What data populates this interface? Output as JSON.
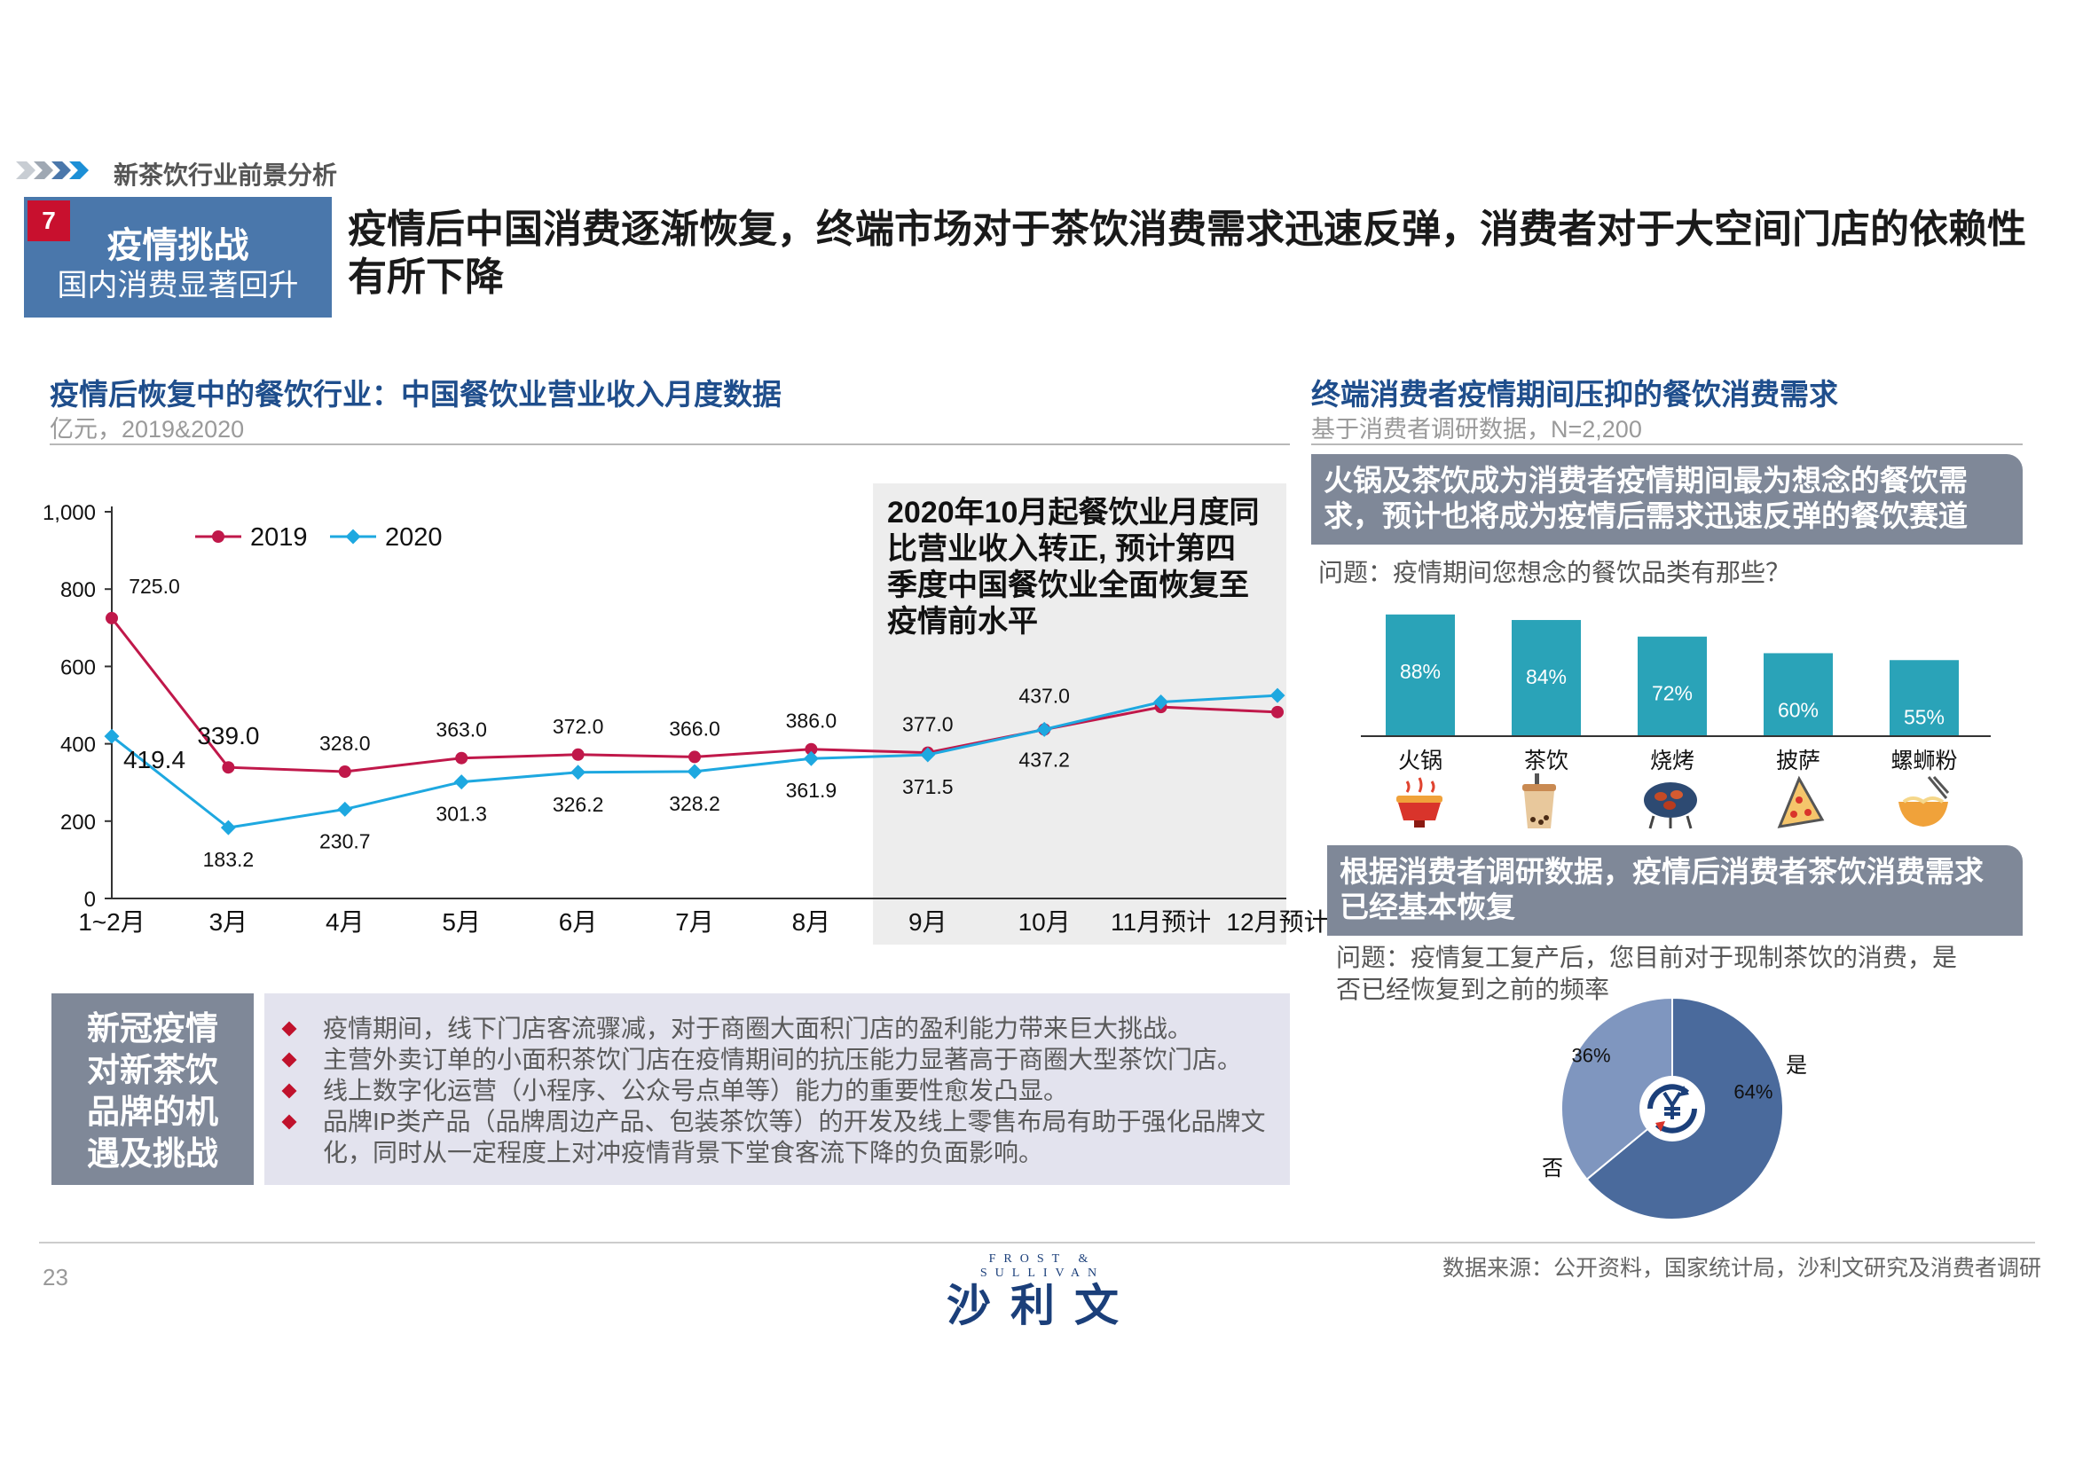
{
  "header": {
    "section_label": "新茶饮行业前景分析",
    "badge_number": "7",
    "box_title": "疫情挑战",
    "box_subtitle": "国内消费显著回升",
    "main_title_line1": "疫情后中国消费逐渐恢复，终端市场对于茶饮消费需求迅速反弹，消费者对于大空间门店的依赖性",
    "main_title_line2": "有所下降"
  },
  "left": {
    "heading": "疫情后恢复中的餐饮行业：中国餐饮业营业收入月度数据",
    "unit": "亿元，2019&2020",
    "callout": [
      "2020年10月起餐饮业月度同",
      "比营业收入转正, 预计第四",
      "季度中国餐饮业全面恢复至",
      "疫情前水平"
    ]
  },
  "chart_data": [
    {
      "type": "line",
      "title": "",
      "ylabel": "",
      "ylim": [
        0,
        1000
      ],
      "yticks": [
        0,
        200,
        400,
        600,
        800,
        1000
      ],
      "ytick_labels": [
        "0",
        "200",
        "400",
        "600",
        "800",
        "1,000"
      ],
      "categories": [
        "1~2月",
        "3月",
        "4月",
        "5月",
        "6月",
        "7月",
        "8月",
        "9月",
        "10月",
        "11月预计",
        "12月预计"
      ],
      "series": [
        {
          "name": "2019",
          "color": "#c0184a",
          "values": [
            725.0,
            339.0,
            328.0,
            363.0,
            372.0,
            366.0,
            386.0,
            377.0,
            437.0,
            495.0,
            482.0
          ],
          "labels": [
            "725.0",
            "339.0",
            "328.0",
            "363.0",
            "372.0",
            "366.0",
            "386.0",
            "377.0",
            "437.0",
            "",
            ""
          ]
        },
        {
          "name": "2020",
          "color": "#1ea8e0",
          "values": [
            419.4,
            183.2,
            230.7,
            301.3,
            326.2,
            328.2,
            361.9,
            371.5,
            437.2,
            508.0,
            525.0
          ],
          "labels": [
            "419.4",
            "183.2",
            "230.7",
            "301.3",
            "326.2",
            "328.2",
            "361.9",
            "371.5",
            "437.2",
            "",
            ""
          ]
        }
      ],
      "legend": "top-left",
      "highlight_range": [
        "9月",
        "12月预计"
      ]
    },
    {
      "type": "bar",
      "title": "",
      "categories": [
        "火锅",
        "茶饮",
        "烧烤",
        "披萨",
        "螺蛳粉"
      ],
      "values": [
        88,
        84,
        72,
        60,
        55
      ],
      "value_labels": [
        "88%",
        "84%",
        "72%",
        "60%",
        "55%"
      ],
      "color": "#2aa3b8"
    },
    {
      "type": "pie",
      "title": "",
      "slices": [
        {
          "label": "是",
          "value": 64,
          "value_label": "64%",
          "color": "#4a6a9c"
        },
        {
          "label": "否",
          "value": 36,
          "value_label": "36%",
          "color": "#7f96bf"
        }
      ]
    }
  ],
  "right": {
    "heading": "终端消费者疫情期间压抑的餐饮消费需求",
    "subheading": "基于消费者调研数据，N=2,200",
    "banner1": [
      "火锅及茶饮成为消费者疫情期间最为想念的餐饮需",
      "求，预计也将成为疫情后需求迅速反弹的餐饮赛道"
    ],
    "question1": "问题：疫情期间您想念的餐饮品类有那些？",
    "banner2": [
      "根据消费者调研数据，疫情后消费者茶饮消费需求",
      "已经基本恢复"
    ],
    "question2": [
      "问题：疫情复工复产后，您目前对于现制茶饮的消费，是",
      "否已经恢复到之前的频率"
    ]
  },
  "bottom": {
    "side_title": [
      "新冠疫情",
      "对新茶饮",
      "品牌的机",
      "遇及挑战"
    ],
    "bullets": [
      "疫情期间，线下门店客流骤减，对于商圈大面积门店的盈利能力带来巨大挑战。",
      "主营外卖订单的小面积茶饮门店在疫情期间的抗压能力显著高于商圈大型茶饮门店。",
      "线上数字化运营（小程序、公众号点单等）能力的重要性愈发凸显。",
      "品牌IP类产品（品牌周边产品、包装茶饮等）的开发及线上零售布局有助于强化品牌文化，同时从一定程度上对冲疫情背景下堂食客流下降的负面影响。"
    ]
  },
  "footer": {
    "page_number": "23",
    "logo_top": "FROST & SULLIVAN",
    "logo_cn": "沙利文",
    "source": "数据来源：公开资料，国家统计局，沙利文研究及消费者调研"
  }
}
